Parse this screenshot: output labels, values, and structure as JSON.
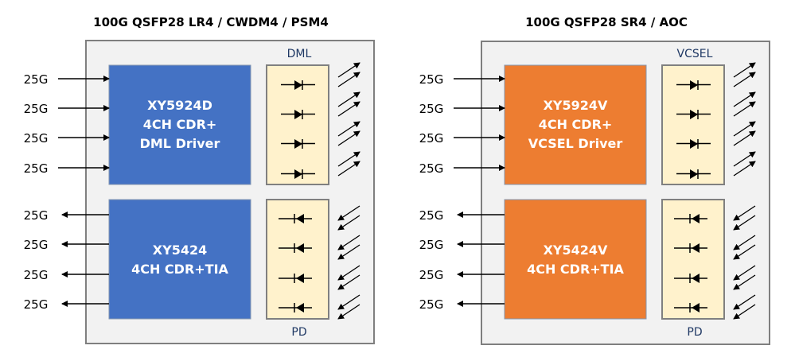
{
  "modules": [
    {
      "title": "100G QSFP28 LR4 / CWDM4 / PSM4",
      "tx_chip": {
        "lines": [
          "XY5924D",
          "4CH CDR+",
          "DML Driver"
        ],
        "color": "#4472C4"
      },
      "rx_chip": {
        "lines": [
          "XY5424",
          "4CH CDR+TIA"
        ],
        "color": "#4472C4"
      },
      "tx_optics_label": "DML",
      "rx_optics_label": "PD",
      "lane_labels_in": [
        "25G",
        "25G",
        "25G",
        "25G"
      ],
      "lane_labels_out": [
        "25G",
        "25G",
        "25G",
        "25G"
      ]
    },
    {
      "title": "100G QSFP28 SR4 / AOC",
      "tx_chip": {
        "lines": [
          "XY5924V",
          "4CH CDR+",
          "VCSEL Driver"
        ],
        "color": "#ED7D31"
      },
      "rx_chip": {
        "lines": [
          "XY5424V",
          "4CH CDR+TIA"
        ],
        "color": "#ED7D31"
      },
      "tx_optics_label": "VCSEL",
      "rx_optics_label": "PD",
      "lane_labels_in": [
        "25G",
        "25G",
        "25G",
        "25G"
      ],
      "lane_labels_out": [
        "25G",
        "25G",
        "25G",
        "25G"
      ]
    }
  ],
  "colors": {
    "panel": "#F2F2F2",
    "panel_border": "#7F7F7F",
    "optics_box": "#FFF2CC",
    "optics_label": "#1F3864"
  }
}
